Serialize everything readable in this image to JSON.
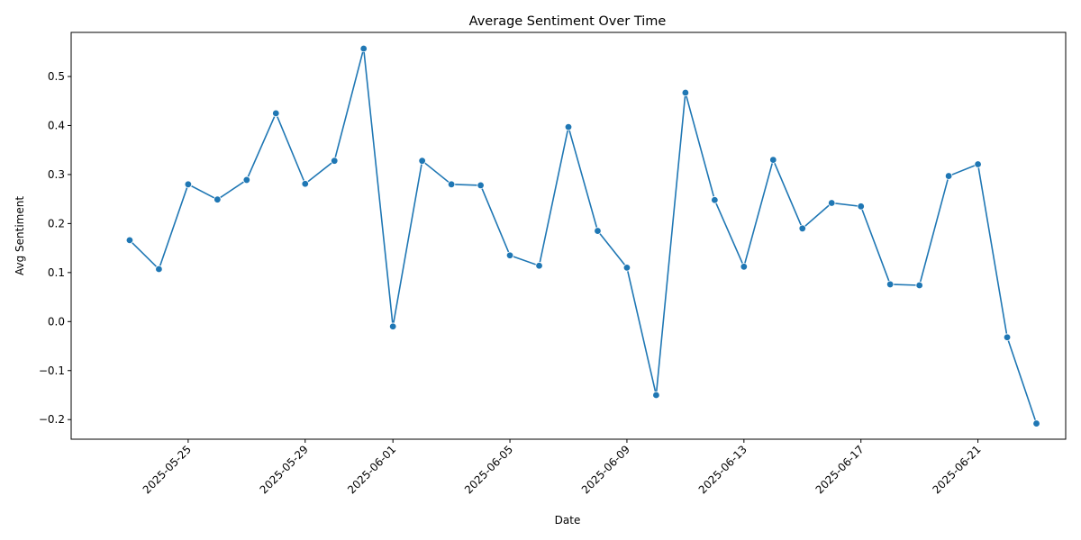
{
  "chart_data": {
    "type": "line",
    "title": "Average Sentiment Over Time",
    "xlabel": "Date",
    "ylabel": "Avg Sentiment",
    "series_color": "#1f77b4",
    "grid": false,
    "legend": "none",
    "xlim": [
      "2025-05-21",
      "2025-06-24"
    ],
    "ylim": [
      -0.24,
      0.59
    ],
    "xticks": [
      "2025-05-25",
      "2025-05-29",
      "2025-06-01",
      "2025-06-05",
      "2025-06-09",
      "2025-06-13",
      "2025-06-17",
      "2025-06-21"
    ],
    "yticks": [
      "−0.2",
      "−0.1",
      "0.0",
      "0.1",
      "0.2",
      "0.3",
      "0.4",
      "0.5"
    ],
    "x": [
      "2025-05-23",
      "2025-05-24",
      "2025-05-25",
      "2025-05-26",
      "2025-05-27",
      "2025-05-28",
      "2025-05-29",
      "2025-05-30",
      "2025-05-31",
      "2025-06-01",
      "2025-06-02",
      "2025-06-03",
      "2025-06-04",
      "2025-06-05",
      "2025-06-06",
      "2025-06-07",
      "2025-06-08",
      "2025-06-09",
      "2025-06-10",
      "2025-06-11",
      "2025-06-12",
      "2025-06-13",
      "2025-06-14",
      "2025-06-15",
      "2025-06-16",
      "2025-06-17",
      "2025-06-18",
      "2025-06-19",
      "2025-06-20",
      "2025-06-21",
      "2025-06-22",
      "2025-06-23"
    ],
    "values": [
      0.166,
      0.107,
      0.28,
      0.249,
      0.289,
      0.425,
      0.281,
      0.328,
      0.557,
      -0.01,
      0.328,
      0.28,
      0.278,
      0.135,
      0.114,
      0.397,
      0.185,
      0.11,
      -0.15,
      0.467,
      0.248,
      0.112,
      0.33,
      0.19,
      0.242,
      0.235,
      0.076,
      0.074,
      0.297,
      0.321,
      -0.032,
      -0.208
    ]
  }
}
